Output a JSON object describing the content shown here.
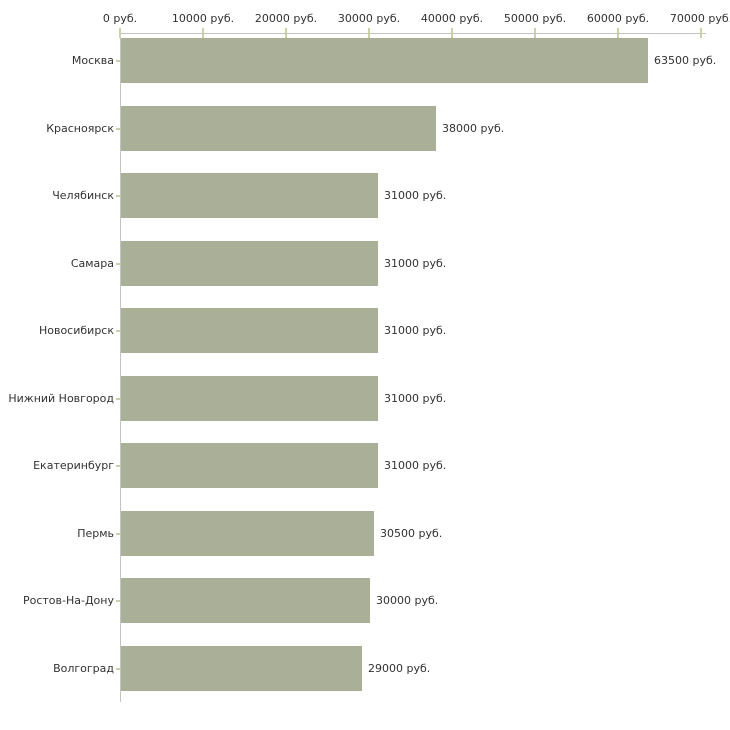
{
  "chart_data": {
    "type": "bar",
    "orientation": "horizontal",
    "title": "",
    "xlabel": "",
    "ylabel": "",
    "unit": "руб.",
    "categories": [
      "Москва",
      "Красноярск",
      "Челябинск",
      "Самара",
      "Новосибирск",
      "Нижний Новгород",
      "Екатеринбург",
      "Пермь",
      "Ростов-На-Дону",
      "Волгоград"
    ],
    "values": [
      63500,
      38000,
      31000,
      31000,
      31000,
      31000,
      31000,
      30500,
      30000,
      29000
    ],
    "value_labels": [
      "63500 руб.",
      "38000 руб.",
      "31000 руб.",
      "31000 руб.",
      "31000 руб.",
      "31000 руб.",
      "31000 руб.",
      "30500 руб.",
      "30000 руб.",
      "29000 руб."
    ],
    "x_tick_labels": [
      "0 руб.",
      "10000 руб.",
      "20000 руб.",
      "30000 руб.",
      "40000 руб.",
      "50000 руб.",
      "60000 руб.",
      "70000 руб."
    ],
    "xlim": [
      0,
      70000
    ],
    "x_tick_step": 10000,
    "grid": false,
    "legend": false,
    "colors": {
      "bar": "#aab097",
      "axis_line": "#c3c3c3",
      "tick": "#ccd0a6",
      "text": "#323232",
      "background": "#ffffff"
    }
  }
}
